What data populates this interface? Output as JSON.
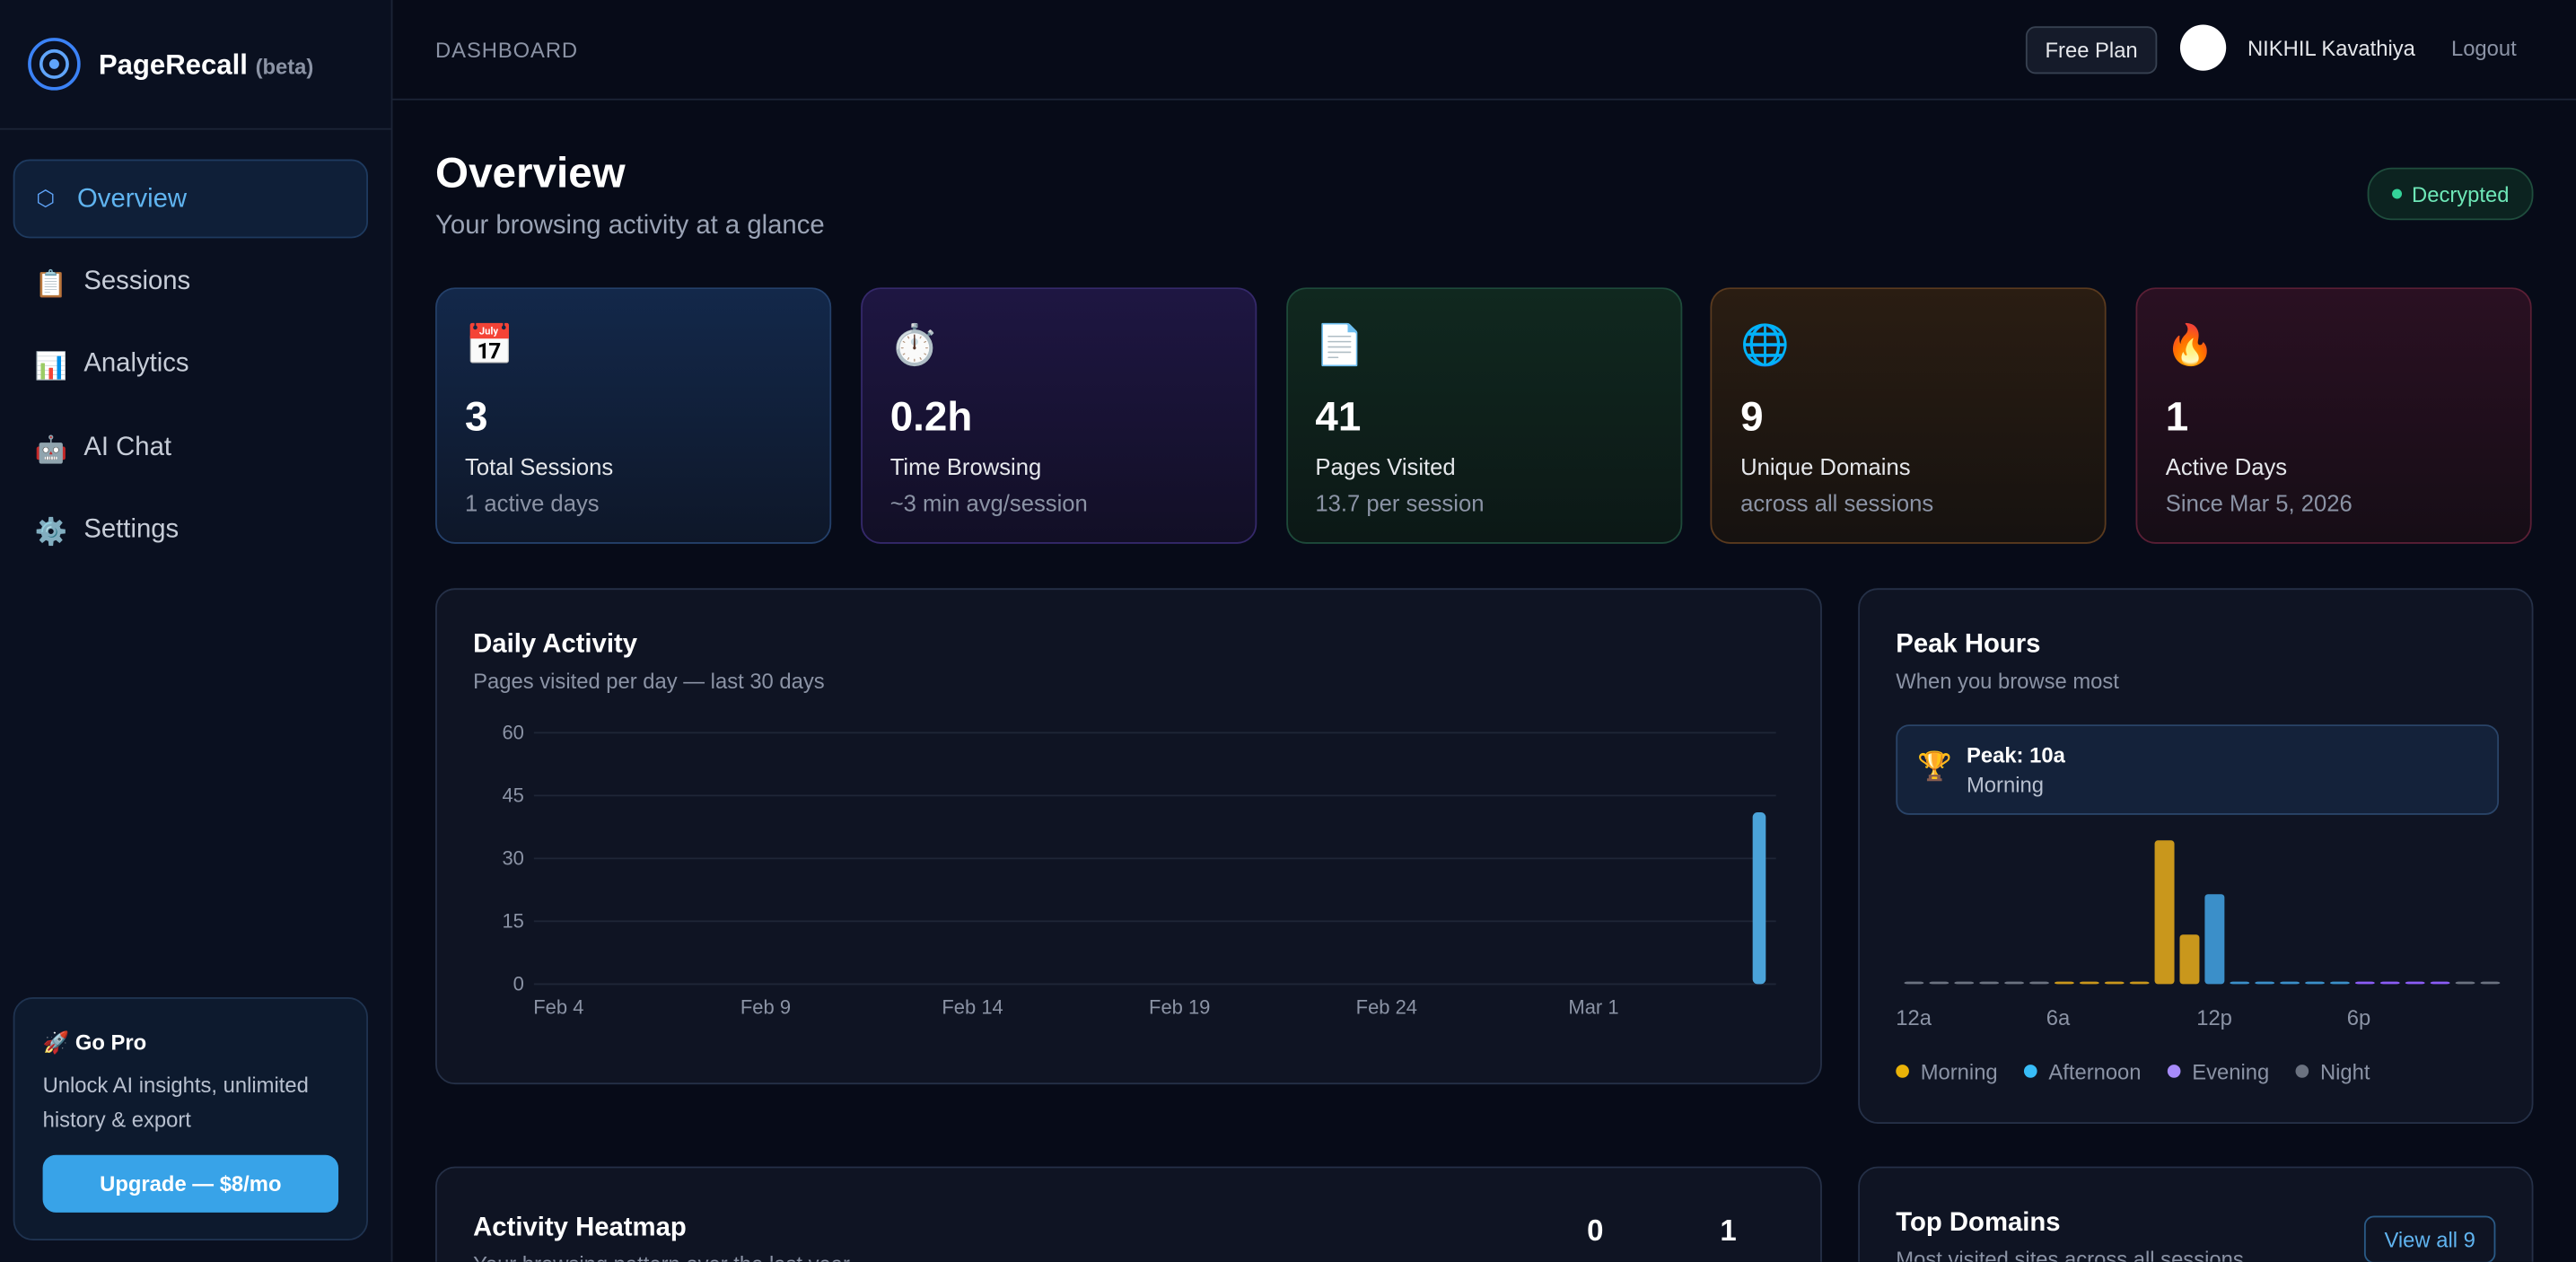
{
  "sidebar": {
    "logo": {
      "name": "PageRecall",
      "tag": "(beta)"
    },
    "nav": [
      {
        "icon": "⬡",
        "label": "Overview",
        "active": true
      },
      {
        "icon": "📋",
        "label": "Sessions"
      },
      {
        "icon": "📊",
        "label": "Analytics"
      },
      {
        "icon": "🤖",
        "label": "AI Chat"
      },
      {
        "icon": "⚙️",
        "label": "Settings"
      }
    ],
    "promo": {
      "title": "🚀 Go Pro",
      "text": "Unlock AI insights, unlimited history & export",
      "button": "Upgrade — $8/mo"
    }
  },
  "header": {
    "section": "DASHBOARD",
    "plan": "Free Plan",
    "user": "NIKHIL Kavathiya",
    "logout": "Logout"
  },
  "page": {
    "title": "Overview",
    "subtitle": "Your browsing activity at a glance",
    "status": "Decrypted"
  },
  "stats": [
    {
      "icon": "📅",
      "value": 3,
      "label": "Total Sessions",
      "sub": "1 active days"
    },
    {
      "icon": "⏱️",
      "value": "0.2h",
      "label": "Time Browsing",
      "sub": "~3 min avg/session"
    },
    {
      "icon": "📄",
      "value": 41,
      "label": "Pages Visited",
      "sub": "13.7 per session"
    },
    {
      "icon": "🌐",
      "value": 9,
      "label": "Unique Domains",
      "sub": "across all sessions"
    },
    {
      "icon": "🔥",
      "value": 1,
      "label": "Active Days",
      "sub": "Since Mar 5, 2026"
    }
  ],
  "chart_data": [
    {
      "type": "bar",
      "title": "Daily Activity",
      "subtitle": "Pages visited per day — last 30 days",
      "categories": [
        "Feb 4",
        null,
        null,
        null,
        null,
        "Feb 9",
        null,
        null,
        null,
        null,
        "Feb 14",
        null,
        null,
        null,
        null,
        "Feb 19",
        null,
        null,
        null,
        null,
        "Feb 24",
        null,
        null,
        null,
        null,
        "Mar 1",
        null,
        null,
        null,
        null
      ],
      "values": [
        0,
        0,
        0,
        0,
        0,
        0,
        0,
        0,
        0,
        0,
        0,
        0,
        0,
        0,
        0,
        0,
        0,
        0,
        0,
        0,
        0,
        0,
        0,
        0,
        0,
        0,
        0,
        0,
        0,
        41
      ],
      "color": "#4ba3d9",
      "ylim": [
        0,
        60
      ],
      "yticks": [
        0,
        15,
        30,
        45,
        60
      ],
      "grid": true
    },
    {
      "type": "bar",
      "title": "Peak Hours",
      "subtitle": "When you browse most",
      "peak_label": "Peak: 10a",
      "peak_period": "Morning",
      "peak_icon": "🏆",
      "categories": [
        "12a",
        null,
        null,
        null,
        null,
        null,
        "6a",
        null,
        null,
        null,
        null,
        null,
        "12p",
        null,
        null,
        null,
        null,
        null,
        "6p",
        null,
        null,
        null,
        null,
        null
      ],
      "values": [
        0,
        0,
        0,
        0,
        0,
        0,
        0,
        0,
        0,
        0,
        21,
        7,
        13,
        0,
        0,
        0,
        0,
        0,
        0,
        0,
        0,
        0,
        0,
        0
      ],
      "colors": [
        "#6b7280",
        "#6b7280",
        "#6b7280",
        "#6b7280",
        "#6b7280",
        "#6b7280",
        "#c9971c",
        "#c9971c",
        "#c9971c",
        "#c9971c",
        "#c9971c",
        "#c9971c",
        "#3b8fc9",
        "#3b8fc9",
        "#3b8fc9",
        "#3b8fc9",
        "#3b8fc9",
        "#3b8fc9",
        "#8b5cf6",
        "#8b5cf6",
        "#8b5cf6",
        "#8b5cf6",
        "#6b7280",
        "#6b7280"
      ],
      "legend": [
        {
          "name": "Morning",
          "color": "#eab308"
        },
        {
          "name": "Afternoon",
          "color": "#38bdf8"
        },
        {
          "name": "Evening",
          "color": "#a78bfa"
        },
        {
          "name": "Night",
          "color": "#6b7280"
        }
      ]
    }
  ],
  "heatmap": {
    "title": "Activity Heatmap",
    "subtitle": "Your browsing pattern over the last year",
    "counts": [
      0,
      1
    ]
  },
  "domains": {
    "title": "Top Domains",
    "subtitle": "Most visited sites across all sessions",
    "link": "View all 9"
  }
}
